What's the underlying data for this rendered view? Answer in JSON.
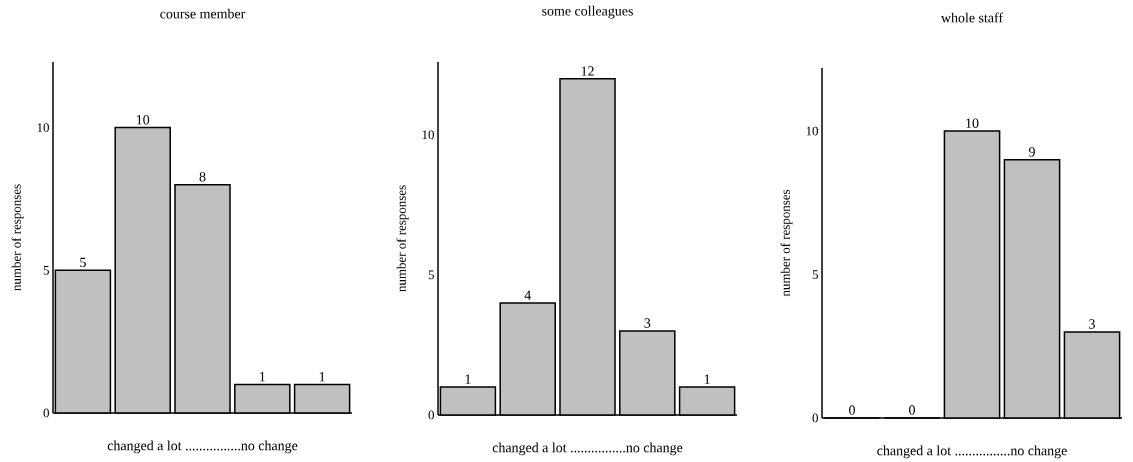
{
  "chart_data": [
    {
      "type": "bar",
      "title": "course member",
      "ylabel": "number of responses",
      "xlabel": "changed a lot ................no change",
      "categories": [
        null,
        null,
        null,
        null,
        null
      ],
      "values": [
        5,
        10,
        8,
        1,
        1
      ],
      "color": "#c0c0c0",
      "ylim": [
        0,
        12.3
      ],
      "yticks": [
        0,
        5,
        10
      ],
      "data_labels": true
    },
    {
      "type": "bar",
      "title": "some colleagues",
      "ylabel": "number of responses",
      "xlabel": "changed a lot ................no change",
      "categories": [
        null,
        null,
        null,
        null,
        null
      ],
      "values": [
        1,
        4,
        12,
        3,
        1
      ],
      "color": "#c0c0c0",
      "ylim": [
        0,
        12.6
      ],
      "yticks": [
        0,
        5,
        10
      ],
      "data_labels": true
    },
    {
      "type": "bar",
      "title": "whole staff",
      "ylabel": "number of responses",
      "xlabel": "changed a lot ................no change",
      "categories": [
        null,
        null,
        null,
        null,
        null
      ],
      "values": [
        0,
        0,
        10,
        9,
        3
      ],
      "color": "#c0c0c0",
      "ylim": [
        0,
        12.2
      ],
      "yticks": [
        0,
        5,
        10
      ],
      "data_labels": true
    }
  ]
}
